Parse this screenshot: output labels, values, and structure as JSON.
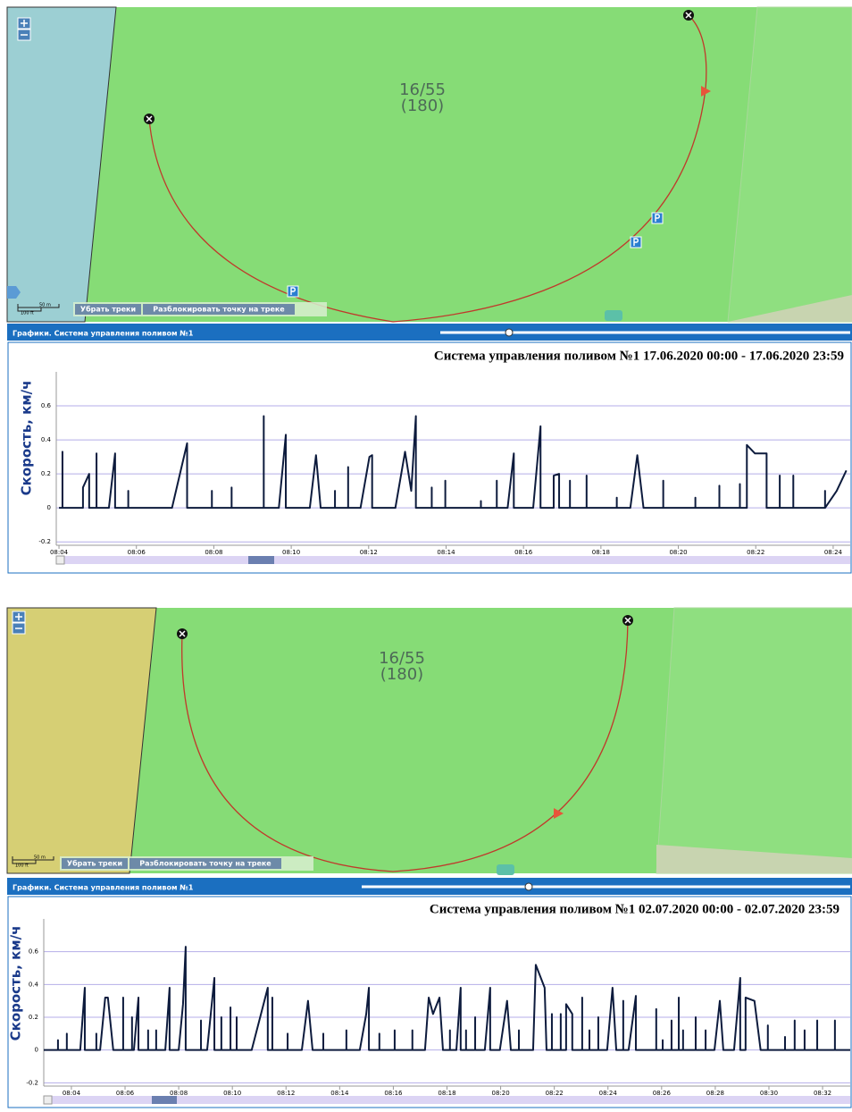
{
  "panels": [
    {
      "map": {
        "field_number": "16/55",
        "field_area": "(180)",
        "scale_m": "50 m",
        "scale_ft": "100 ft",
        "buttons": [
          "Убрать треки",
          "Разблокировать точку на треке"
        ]
      },
      "panel_title": "Графики. Система управления поливом №1"
    },
    {
      "map": {
        "field_number": "16/55",
        "field_area": "(180)",
        "scale_m": "50 m",
        "scale_ft": "100 ft",
        "buttons": [
          "Убрать треки",
          "Разблокировать точку на треке"
        ]
      },
      "panel_title": "Графики. Система управления поливом №1"
    }
  ],
  "chart_data": [
    {
      "type": "line",
      "title": "Система управления поливом №1 17.06.2020 00:00 - 17.06.2020 23:59",
      "y_label": "Скорость, км/ч",
      "color": "#0d1b3d",
      "grid": true,
      "x": [
        484.0,
        484.09,
        484.09,
        484.09,
        484.62,
        484.62,
        484.78,
        484.78,
        484.97,
        484.97,
        484.97,
        485.29,
        485.45,
        485.45,
        485.79,
        485.79,
        485.79,
        486.92,
        487.31,
        487.31,
        487.95,
        487.95,
        487.95,
        488.46,
        488.46,
        488.46,
        489.29,
        489.29,
        489.29,
        489.68,
        489.86,
        489.86,
        490.48,
        490.64,
        490.76,
        491.13,
        491.13,
        491.13,
        491.47,
        491.47,
        491.47,
        491.79,
        492.02,
        492.09,
        492.09,
        492.69,
        492.94,
        493.1,
        493.22,
        493.22,
        493.63,
        493.63,
        493.63,
        493.98,
        493.98,
        493.98,
        494.9,
        494.9,
        494.9,
        495.31,
        495.31,
        495.31,
        495.59,
        495.75,
        495.75,
        496.25,
        496.44,
        496.44,
        496.78,
        496.78,
        496.92,
        496.92,
        497.2,
        497.2,
        497.2,
        497.63,
        497.63,
        497.63,
        498.41,
        498.41,
        498.41,
        498.76,
        498.94,
        499.1,
        499.61,
        499.61,
        499.61,
        500.44,
        500.44,
        500.44,
        501.06,
        501.06,
        501.06,
        501.59,
        501.59,
        501.59,
        501.77,
        501.77,
        501.98,
        502.28,
        502.28,
        502.62,
        502.62,
        502.62,
        502.97,
        502.97,
        502.97,
        503.79,
        503.79,
        503.79,
        504.09,
        504.34
      ],
      "values": [
        0,
        0,
        0.33,
        0,
        0,
        0.12,
        0.2,
        0,
        0,
        0.32,
        0,
        0,
        0.32,
        0,
        0,
        0.1,
        0,
        0,
        0.38,
        0,
        0,
        0.1,
        0,
        0,
        0.12,
        0,
        0,
        0.54,
        0,
        0,
        0.43,
        0,
        0,
        0.31,
        0,
        0,
        0.1,
        0,
        0,
        0.24,
        0,
        0,
        0.3,
        0.31,
        0,
        0,
        0.33,
        0.1,
        0.54,
        0,
        0,
        0.12,
        0,
        0,
        0.16,
        0,
        0,
        0.04,
        0,
        0,
        0.16,
        0,
        0,
        0.32,
        0,
        0,
        0.48,
        0,
        0,
        0.19,
        0.2,
        0,
        0,
        0.16,
        0,
        0,
        0.19,
        0,
        0,
        0.06,
        0,
        0,
        0.31,
        0,
        0,
        0.16,
        0,
        0,
        0.06,
        0,
        0,
        0.13,
        0,
        0,
        0.14,
        0,
        0,
        0.37,
        0.32,
        0.32,
        0,
        0,
        0.19,
        0,
        0,
        0.19,
        0,
        0,
        0.1,
        0,
        0.1,
        0.22
      ],
      "xlim": [
        483.93,
        504.44
      ],
      "ylim": [
        -0.22,
        0.8
      ],
      "xticks": [
        {
          "value": 484,
          "label": "08:04"
        },
        {
          "value": 486,
          "label": "08:06"
        },
        {
          "value": 488,
          "label": "08:08"
        },
        {
          "value": 490,
          "label": "08:10"
        },
        {
          "value": 492,
          "label": "08:12"
        },
        {
          "value": 494,
          "label": "08:14"
        },
        {
          "value": 496,
          "label": "08:16"
        },
        {
          "value": 498,
          "label": "08:18"
        },
        {
          "value": 500,
          "label": "08:20"
        },
        {
          "value": 502,
          "label": "08:22"
        },
        {
          "value": 504,
          "label": "08:24"
        }
      ],
      "yticks": [
        -0.2,
        0,
        0.2,
        0.4,
        0.6
      ]
    },
    {
      "type": "line",
      "title": "Система управления поливом №1 02.07.2020 00:00 - 02.07.2020 23:59",
      "y_label": "Скорость, км/ч",
      "color": "#0d1b3d",
      "grid": true,
      "x": [
        482.97,
        483.5,
        483.5,
        483.5,
        483.83,
        483.83,
        483.83,
        484.33,
        484.5,
        484.5,
        484.93,
        484.93,
        484.93,
        485.07,
        485.26,
        485.36,
        485.56,
        485.93,
        485.93,
        485.93,
        486.26,
        486.26,
        486.26,
        486.33,
        486.5,
        486.5,
        486.86,
        486.86,
        486.86,
        487.16,
        487.16,
        487.16,
        487.5,
        487.66,
        487.66,
        488.0,
        488.16,
        488.26,
        488.26,
        488.83,
        488.83,
        488.83,
        489.06,
        489.33,
        489.33,
        489.59,
        489.59,
        489.59,
        489.93,
        489.93,
        489.93,
        490.16,
        490.16,
        490.16,
        490.72,
        491.32,
        491.32,
        491.49,
        491.49,
        491.49,
        492.06,
        492.06,
        492.06,
        492.59,
        492.82,
        492.99,
        493.39,
        493.39,
        493.39,
        494.25,
        494.25,
        494.25,
        494.75,
        494.99,
        495.09,
        495.09,
        495.48,
        495.48,
        495.48,
        496.05,
        496.05,
        496.05,
        496.71,
        496.71,
        496.71,
        497.18,
        497.32,
        497.48,
        497.72,
        497.85,
        498.11,
        498.11,
        498.11,
        498.35,
        498.51,
        498.51,
        498.71,
        498.71,
        498.71,
        499.05,
        499.05,
        499.05,
        499.41,
        499.61,
        499.61,
        499.97,
        500.24,
        500.38,
        500.68,
        500.68,
        500.68,
        501.21,
        501.31,
        501.64,
        501.71,
        501.91,
        501.91,
        501.91,
        502.24,
        502.24,
        502.24,
        502.44,
        502.44,
        502.67,
        502.67,
        503.04,
        503.04,
        503.04,
        503.31,
        503.31,
        503.31,
        503.64,
        503.64,
        503.64,
        503.97,
        504.17,
        504.31,
        504.57,
        504.57,
        504.57,
        504.77,
        505.04,
        505.04,
        505.8,
        505.8,
        505.8,
        506.04,
        506.04,
        506.04,
        506.37,
        506.37,
        506.37,
        506.64,
        506.64,
        506.64,
        506.8,
        506.8,
        506.8,
        507.27,
        507.27,
        507.27,
        507.64,
        507.64,
        507.64,
        507.97,
        508.17,
        508.3,
        508.7,
        508.93,
        508.93,
        509.13,
        509.13,
        509.46,
        509.69,
        509.96,
        509.96,
        509.96,
        510.6,
        510.6,
        510.6,
        510.96,
        510.96,
        510.96,
        511.33,
        511.33,
        511.33,
        511.8,
        511.8,
        511.8,
        512.46,
        512.46,
        512.46,
        513.03
      ],
      "values": [
        0,
        0,
        0.06,
        0,
        0,
        0.1,
        0,
        0,
        0.38,
        0,
        0,
        0.1,
        0,
        0,
        0.32,
        0.32,
        0,
        0,
        0.32,
        0,
        0,
        0.2,
        0,
        0,
        0.32,
        0,
        0,
        0.12,
        0,
        0,
        0.12,
        0,
        0,
        0.38,
        0,
        0,
        0.28,
        0.63,
        0,
        0,
        0.18,
        0,
        0,
        0.44,
        0,
        0,
        0.2,
        0,
        0,
        0.26,
        0,
        0,
        0.2,
        0,
        0,
        0.38,
        0,
        0,
        0.32,
        0,
        0,
        0.1,
        0,
        0,
        0.3,
        0,
        0,
        0.1,
        0,
        0,
        0.12,
        0,
        0,
        0.22,
        0.38,
        0,
        0,
        0.1,
        0,
        0,
        0.12,
        0,
        0,
        0.12,
        0,
        0,
        0.32,
        0.22,
        0.32,
        0,
        0,
        0.12,
        0,
        0,
        0.38,
        0,
        0,
        0.12,
        0,
        0,
        0.2,
        0,
        0,
        0.38,
        0,
        0,
        0.3,
        0,
        0,
        0.12,
        0,
        0,
        0.52,
        0.38,
        0,
        0,
        0.22,
        0,
        0,
        0.22,
        0,
        0,
        0.28,
        0.22,
        0,
        0,
        0.32,
        0,
        0,
        0.12,
        0,
        0,
        0.2,
        0,
        0,
        0.38,
        0,
        0,
        0.3,
        0,
        0,
        0.33,
        0,
        0,
        0.25,
        0,
        0,
        0.06,
        0,
        0,
        0.18,
        0,
        0,
        0.32,
        0,
        0,
        0.12,
        0,
        0,
        0.2,
        0,
        0,
        0.12,
        0,
        0,
        0.3,
        0,
        0,
        0.44,
        0,
        0,
        0.32,
        0.3,
        0,
        0,
        0.15,
        0,
        0,
        0.08,
        0,
        0,
        0.18,
        0,
        0,
        0.12,
        0,
        0,
        0.18,
        0,
        0,
        0.18,
        0,
        0
      ],
      "xlim": [
        482.97,
        513.03
      ],
      "ylim": [
        -0.22,
        0.8
      ],
      "xticks": [
        {
          "value": 484,
          "label": "08:04"
        },
        {
          "value": 486,
          "label": "08:06"
        },
        {
          "value": 488,
          "label": "08:08"
        },
        {
          "value": 490,
          "label": "08:10"
        },
        {
          "value": 492,
          "label": "08:12"
        },
        {
          "value": 494,
          "label": "08:14"
        },
        {
          "value": 496,
          "label": "08:16"
        },
        {
          "value": 498,
          "label": "08:18"
        },
        {
          "value": 500,
          "label": "08:20"
        },
        {
          "value": 502,
          "label": "08:22"
        },
        {
          "value": 504,
          "label": "08:24"
        },
        {
          "value": 506,
          "label": "08:26"
        },
        {
          "value": 508,
          "label": "08:28"
        },
        {
          "value": 510,
          "label": "08:30"
        },
        {
          "value": 512,
          "label": "08:32"
        }
      ],
      "yticks": [
        -0.2,
        0,
        0.2,
        0.4,
        0.6
      ]
    }
  ]
}
